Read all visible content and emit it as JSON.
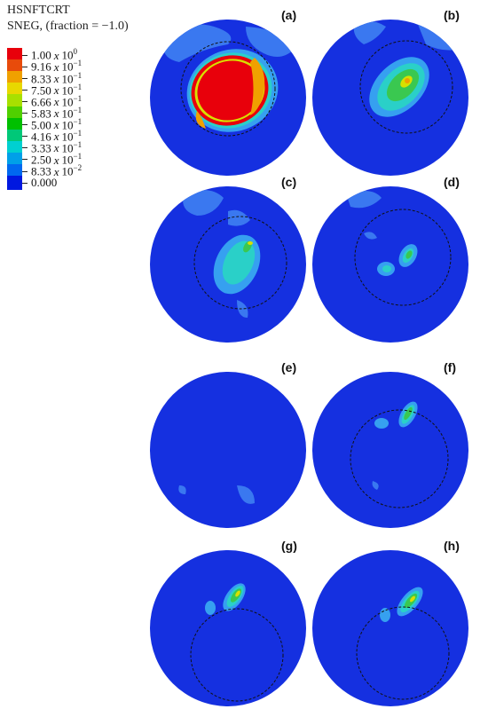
{
  "legend": {
    "title1": "HSNFTCRT",
    "title2": "SNEG, (fraction = −1.0)",
    "entries": [
      {
        "mant": "1.00",
        "exp": "0",
        "color": "#e8000b"
      },
      {
        "mant": "9.16",
        "exp": "−1",
        "color": "#e84b0b"
      },
      {
        "mant": "8.33",
        "exp": "−1",
        "color": "#f0a000"
      },
      {
        "mant": "7.50",
        "exp": "−1",
        "color": "#e8d800"
      },
      {
        "mant": "6.66",
        "exp": "−1",
        "color": "#a8e000"
      },
      {
        "mant": "5.83",
        "exp": "−1",
        "color": "#50d000"
      },
      {
        "mant": "5.00",
        "exp": "−1",
        "color": "#00c000"
      },
      {
        "mant": "4.16",
        "exp": "−1",
        "color": "#00c878"
      },
      {
        "mant": "3.33",
        "exp": "−1",
        "color": "#00d0d0"
      },
      {
        "mant": "2.50",
        "exp": "−1",
        "color": "#00a0e8"
      },
      {
        "mant": "8.33",
        "exp": "−2",
        "color": "#0068f0"
      },
      {
        "mant": "0.000",
        "exp": "",
        "color": "#0018e0"
      }
    ]
  },
  "panels": [
    {
      "label": "(a)"
    },
    {
      "label": "(b)"
    },
    {
      "label": "(c)"
    },
    {
      "label": "(d)"
    },
    {
      "label": "(e)"
    },
    {
      "label": "(f)"
    },
    {
      "label": "(g)"
    },
    {
      "label": "(h)"
    }
  ],
  "colors": {
    "base": "#1530e0",
    "light": "#3a78f0",
    "mid": "#36a0f0",
    "cyan": "#2ad0c8",
    "green": "#3ac850",
    "yellow": "#d8e000",
    "orange": "#f0a000",
    "red": "#e8000b"
  }
}
